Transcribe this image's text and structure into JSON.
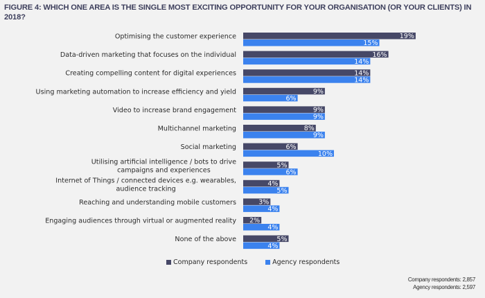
{
  "chart_data": {
    "type": "bar",
    "orientation": "horizontal",
    "title": "FIGURE 4: WHICH ONE AREA IS THE SINGLE MOST EXCITING OPPORTUNITY FOR YOUR ORGANISATION (OR YOUR CLIENTS) IN 2018?",
    "xlabel": "",
    "ylabel": "",
    "value_suffix": "%",
    "xlim": [
      0,
      20
    ],
    "grid": false,
    "legend_position": "bottom",
    "categories": [
      [
        "Optimising the customer experience"
      ],
      [
        "Data-driven marketing that focuses on the individual"
      ],
      [
        "Creating compelling content for digital experiences"
      ],
      [
        "Using marketing automation to increase efficiency and yield"
      ],
      [
        "Video to increase brand engagement"
      ],
      [
        "Multichannel marketing"
      ],
      [
        "Social marketing"
      ],
      [
        "Utilising artificial intelligence / bots to drive",
        "campaigns and experiences"
      ],
      [
        "Internet of Things / connected devices e.g. wearables,",
        "audience tracking"
      ],
      [
        "Reaching and understanding mobile customers"
      ],
      [
        "Engaging audiences through virtual or augmented reality"
      ],
      [
        "None of the above"
      ]
    ],
    "series": [
      {
        "name": "Company respondents",
        "color": "#464867",
        "values": [
          19,
          16,
          14,
          9,
          9,
          8,
          6,
          5,
          4,
          3,
          2,
          5
        ]
      },
      {
        "name": "Agency respondents",
        "color": "#3b82ee",
        "values": [
          15,
          14,
          14,
          6,
          9,
          9,
          10,
          6,
          5,
          4,
          4,
          4
        ]
      }
    ]
  },
  "legend": {
    "company_label": "Company respondents",
    "agency_label": "Agency respondents"
  },
  "footnote": {
    "company": "Company respondents: 2,857",
    "agency": "Agency respondents: 2,597"
  },
  "colors": {
    "company": "#464867",
    "agency": "#3b82ee",
    "title": "#3d3f5c",
    "background": "#f2f2f2"
  }
}
